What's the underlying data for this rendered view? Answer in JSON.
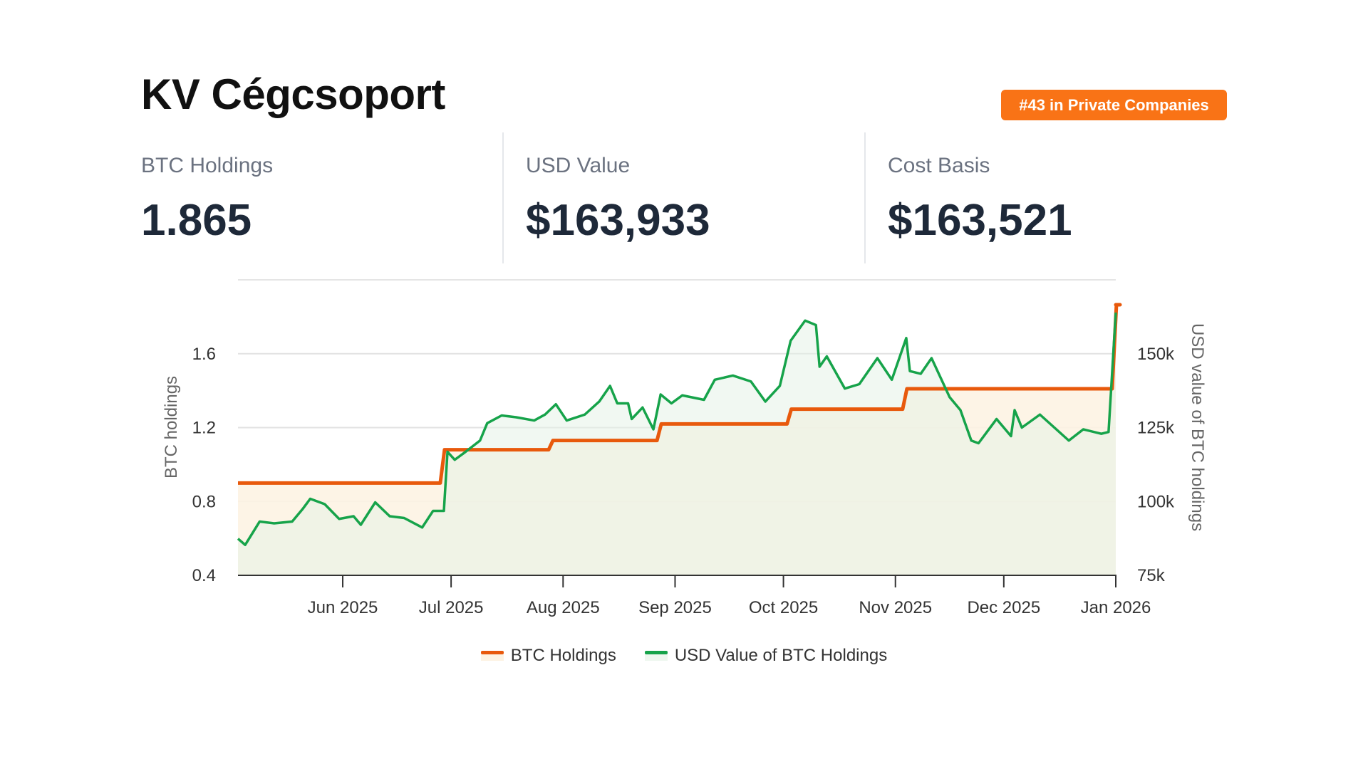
{
  "header": {
    "title": "KV Cégcsoport",
    "rank_badge": "#43 in Private Companies"
  },
  "stats": [
    {
      "label": "BTC Holdings",
      "value": "1.865"
    },
    {
      "label": "USD Value",
      "value": "$163,933"
    },
    {
      "label": "Cost Basis",
      "value": "$163,521"
    }
  ],
  "colors": {
    "accent": "#f97316",
    "btc_line": "#e8590c",
    "usd_line": "#16a34a"
  },
  "chart_data": {
    "type": "line",
    "title": "",
    "xlabel": "",
    "ylabel_left": "BTC holdings",
    "ylabel_right": "USD value of BTC holdings",
    "xlim": [
      "2025-05-03",
      "2026-01-01"
    ],
    "ylim_left": [
      0.4,
      2.0
    ],
    "ylim_right": [
      75000,
      175000
    ],
    "grid": true,
    "legend_position": "bottom",
    "x_ticks": [
      {
        "date": "2025-06-01",
        "label": "Jun 2025"
      },
      {
        "date": "2025-07-01",
        "label": "Jul 2025"
      },
      {
        "date": "2025-08-01",
        "label": "Aug 2025"
      },
      {
        "date": "2025-09-01",
        "label": "Sep 2025"
      },
      {
        "date": "2025-10-01",
        "label": "Oct 2025"
      },
      {
        "date": "2025-11-01",
        "label": "Nov 2025"
      },
      {
        "date": "2025-12-01",
        "label": "Dec 2025"
      },
      {
        "date": "2026-01-01",
        "label": "Jan 2026"
      }
    ],
    "y_ticks_left": [
      {
        "value": 0.4,
        "label": "0.4"
      },
      {
        "value": 0.8,
        "label": "0.8"
      },
      {
        "value": 1.2,
        "label": "1.2"
      },
      {
        "value": 1.6,
        "label": "1.6"
      }
    ],
    "y_ticks_right": [
      {
        "value": 75000,
        "label": "75k"
      },
      {
        "value": 100000,
        "label": "100k"
      },
      {
        "value": 125000,
        "label": "125k"
      },
      {
        "value": 150000,
        "label": "150k"
      }
    ],
    "series": [
      {
        "name": "BTC Holdings",
        "axis": "left",
        "step": true,
        "color": "#e8590c",
        "points": [
          [
            "2025-05-03",
            0.9
          ],
          [
            "2025-06-28",
            1.08
          ],
          [
            "2025-07-28",
            1.13
          ],
          [
            "2025-08-27",
            1.22
          ],
          [
            "2025-10-02",
            1.3
          ],
          [
            "2025-11-03",
            1.41
          ],
          [
            "2025-12-31",
            1.865
          ],
          [
            "2026-01-01",
            1.865
          ]
        ]
      },
      {
        "name": "USD Value of BTC Holdings",
        "axis": "right",
        "color": "#16a34a",
        "points": [
          [
            "2025-05-03",
            87400
          ],
          [
            "2025-05-05",
            85300
          ],
          [
            "2025-05-09",
            93200
          ],
          [
            "2025-05-13",
            92600
          ],
          [
            "2025-05-18",
            93200
          ],
          [
            "2025-05-21",
            97600
          ],
          [
            "2025-05-23",
            100900
          ],
          [
            "2025-05-27",
            99100
          ],
          [
            "2025-05-31",
            94100
          ],
          [
            "2025-06-04",
            95000
          ],
          [
            "2025-06-06",
            92100
          ],
          [
            "2025-06-10",
            99700
          ],
          [
            "2025-06-14",
            95000
          ],
          [
            "2025-06-18",
            94400
          ],
          [
            "2025-06-23",
            91200
          ],
          [
            "2025-06-26",
            96800
          ],
          [
            "2025-06-29",
            96800
          ],
          [
            "2025-06-30",
            116800
          ],
          [
            "2025-07-02",
            114100
          ],
          [
            "2025-07-05",
            116800
          ],
          [
            "2025-07-09",
            120600
          ],
          [
            "2025-07-11",
            126500
          ],
          [
            "2025-07-15",
            129100
          ],
          [
            "2025-07-19",
            128500
          ],
          [
            "2025-07-24",
            127400
          ],
          [
            "2025-07-27",
            129400
          ],
          [
            "2025-07-30",
            132900
          ],
          [
            "2025-08-02",
            127400
          ],
          [
            "2025-08-07",
            129400
          ],
          [
            "2025-08-11",
            133800
          ],
          [
            "2025-08-14",
            139100
          ],
          [
            "2025-08-16",
            133200
          ],
          [
            "2025-08-19",
            133200
          ],
          [
            "2025-08-20",
            127900
          ],
          [
            "2025-08-23",
            131800
          ],
          [
            "2025-08-26",
            124400
          ],
          [
            "2025-08-28",
            136200
          ],
          [
            "2025-08-31",
            133200
          ],
          [
            "2025-09-03",
            135900
          ],
          [
            "2025-09-09",
            134400
          ],
          [
            "2025-09-12",
            141200
          ],
          [
            "2025-09-17",
            142600
          ],
          [
            "2025-09-22",
            140600
          ],
          [
            "2025-09-26",
            133800
          ],
          [
            "2025-09-30",
            139100
          ],
          [
            "2025-10-03",
            154400
          ],
          [
            "2025-10-07",
            161200
          ],
          [
            "2025-10-10",
            159700
          ],
          [
            "2025-10-11",
            145600
          ],
          [
            "2025-10-13",
            149100
          ],
          [
            "2025-10-18",
            138200
          ],
          [
            "2025-10-22",
            139700
          ],
          [
            "2025-10-27",
            148500
          ],
          [
            "2025-10-31",
            141200
          ],
          [
            "2025-11-04",
            155300
          ],
          [
            "2025-11-05",
            144100
          ],
          [
            "2025-11-08",
            143200
          ],
          [
            "2025-11-11",
            148500
          ],
          [
            "2025-11-16",
            135300
          ],
          [
            "2025-11-19",
            130900
          ],
          [
            "2025-11-22",
            120600
          ],
          [
            "2025-11-24",
            119700
          ],
          [
            "2025-11-29",
            127900
          ],
          [
            "2025-12-03",
            122100
          ],
          [
            "2025-12-04",
            130900
          ],
          [
            "2025-12-06",
            125000
          ],
          [
            "2025-12-11",
            129400
          ],
          [
            "2025-12-15",
            125000
          ],
          [
            "2025-12-19",
            120600
          ],
          [
            "2025-12-23",
            124400
          ],
          [
            "2025-12-28",
            122900
          ],
          [
            "2025-12-30",
            123500
          ],
          [
            "2026-01-01",
            163933
          ]
        ]
      }
    ]
  }
}
